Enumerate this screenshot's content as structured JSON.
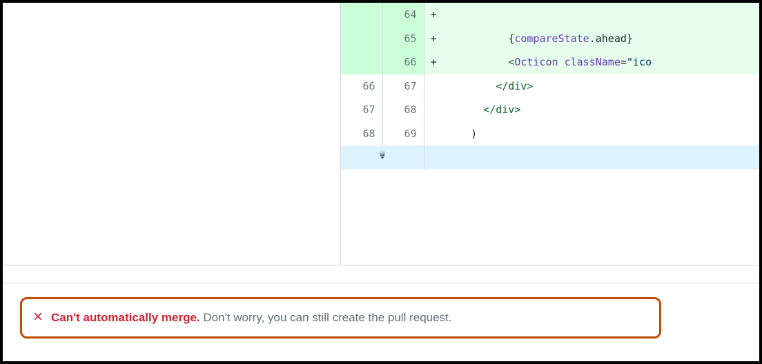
{
  "diff": {
    "rows": [
      {
        "type": "add",
        "old": "",
        "new": "64",
        "marker": "+",
        "tokens": []
      },
      {
        "type": "add",
        "old": "",
        "new": "65",
        "marker": "+",
        "tokens": [
          {
            "t": "plain",
            "v": "          "
          },
          {
            "t": "brace",
            "v": "{"
          },
          {
            "t": "var",
            "v": "compareState"
          },
          {
            "t": "plain",
            "v": ".ahead"
          },
          {
            "t": "brace",
            "v": "}"
          }
        ]
      },
      {
        "type": "add",
        "old": "",
        "new": "66",
        "marker": "+",
        "tokens": [
          {
            "t": "plain",
            "v": "          "
          },
          {
            "t": "tag",
            "v": "<"
          },
          {
            "t": "var",
            "v": "Octicon"
          },
          {
            "t": "plain",
            "v": " "
          },
          {
            "t": "attr",
            "v": "className"
          },
          {
            "t": "plain",
            "v": "="
          },
          {
            "t": "str",
            "v": "\"ico"
          }
        ]
      },
      {
        "type": "ctx",
        "old": "66",
        "new": "67",
        "marker": " ",
        "tokens": [
          {
            "t": "plain",
            "v": "        "
          },
          {
            "t": "tag",
            "v": "</div>"
          }
        ]
      },
      {
        "type": "ctx",
        "old": "67",
        "new": "68",
        "marker": " ",
        "tokens": [
          {
            "t": "plain",
            "v": "      "
          },
          {
            "t": "tag",
            "v": "</div>"
          }
        ]
      },
      {
        "type": "ctx",
        "old": "68",
        "new": "69",
        "marker": " ",
        "tokens": [
          {
            "t": "plain",
            "v": "    )"
          }
        ]
      },
      {
        "type": "expand"
      }
    ]
  },
  "alert": {
    "main": "Can't automatically merge.",
    "sub": "Don't worry, you can still create the pull request."
  },
  "colors": {
    "highlight_border": "#bc4c00",
    "error": "#cf222e",
    "muted": "#656d76",
    "add_bg_gutter": "#ccffd8",
    "add_bg_code": "#e6ffec",
    "expand_bg": "#ddf4ff",
    "border": "#d0d7de"
  }
}
